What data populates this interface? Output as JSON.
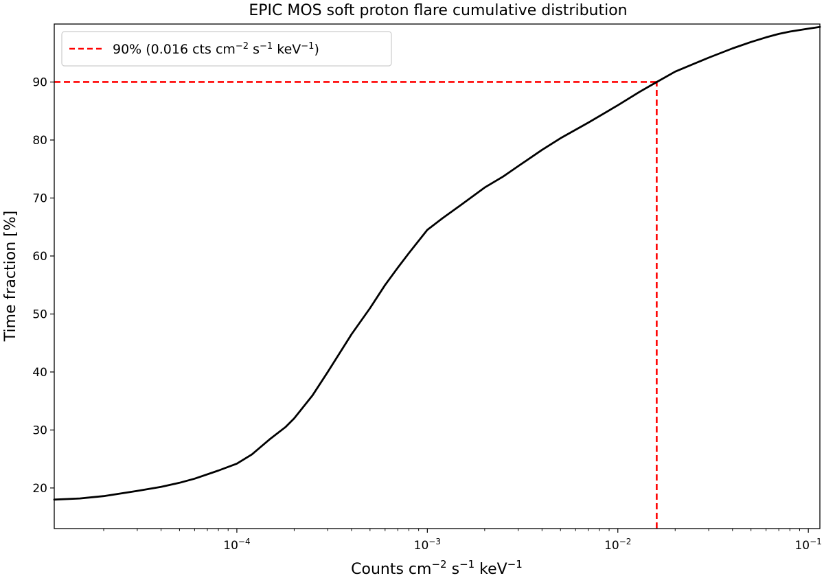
{
  "chart_data": {
    "type": "line",
    "title": "EPIC MOS soft proton flare cumulative distribution",
    "xlabel": "Counts cm⁻² s⁻¹ keV⁻¹",
    "ylabel": "Time fraction [%]",
    "xscale": "log",
    "xlim": [
      1.1e-05,
      0.115
    ],
    "ylim": [
      13,
      100
    ],
    "x_ticks": [
      {
        "value": 0.0001,
        "base": "10",
        "exp": "−4"
      },
      {
        "value": 0.001,
        "base": "10",
        "exp": "−3"
      },
      {
        "value": 0.01,
        "base": "10",
        "exp": "−2"
      },
      {
        "value": 0.1,
        "base": "10",
        "exp": "−1"
      }
    ],
    "y_ticks": [
      20,
      30,
      40,
      50,
      60,
      70,
      80,
      90
    ],
    "grid": false,
    "legend_position": "top-left",
    "legend": [
      {
        "label": "90% (0.016 cts cm⁻² s⁻¹ keV⁻¹)",
        "color": "#ff0000",
        "style": "dashed"
      }
    ],
    "series": [
      {
        "color": "#000000",
        "x": [
          1.1e-05,
          1.5e-05,
          2e-05,
          3e-05,
          4e-05,
          5e-05,
          6e-05,
          8e-05,
          0.0001,
          0.00012,
          0.00015,
          0.00018,
          0.0002,
          0.00025,
          0.0003,
          0.0004,
          0.0005,
          0.0006,
          0.0007,
          0.0008,
          0.001,
          0.0012,
          0.0015,
          0.002,
          0.0025,
          0.003,
          0.004,
          0.005,
          0.007,
          0.01,
          0.013,
          0.016,
          0.02,
          0.03,
          0.04,
          0.05,
          0.06,
          0.07,
          0.08,
          0.1,
          0.115
        ],
        "y": [
          18.0,
          18.2,
          18.6,
          19.5,
          20.2,
          20.9,
          21.6,
          23.0,
          24.2,
          25.8,
          28.5,
          30.5,
          32.0,
          36.0,
          40.0,
          46.5,
          51.0,
          55.0,
          58.0,
          60.5,
          64.5,
          66.5,
          68.8,
          71.8,
          73.7,
          75.5,
          78.3,
          80.3,
          83.0,
          86.0,
          88.3,
          90.0,
          91.8,
          94.2,
          95.8,
          96.9,
          97.7,
          98.3,
          98.7,
          99.2,
          99.5
        ]
      }
    ],
    "reference_lines": [
      {
        "type": "horizontal",
        "y": 90,
        "x_from": 1.1e-05,
        "x_to": 0.016,
        "color": "#ff0000",
        "style": "dashed"
      },
      {
        "type": "vertical",
        "x": 0.016,
        "y_from": 13,
        "y_to": 90,
        "color": "#ff0000",
        "style": "dashed"
      }
    ]
  }
}
